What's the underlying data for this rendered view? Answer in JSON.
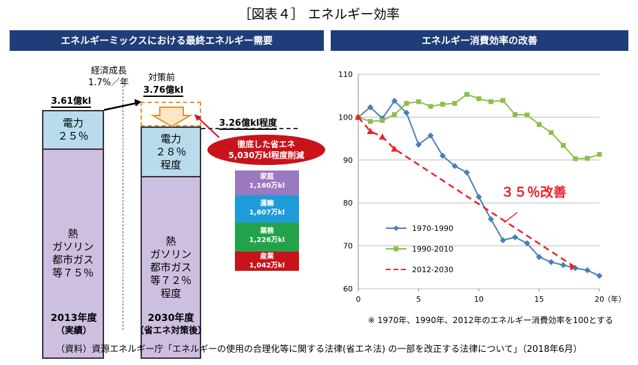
{
  "title": "［図表４］ エネルギー効率",
  "left_panel": {
    "header": "エネルギーミックスにおける最終エネルギー需要",
    "growth_label": "経済成長",
    "growth_rate": "1.7%／年",
    "before_label": "対策前",
    "before_value": "3.76億kl",
    "bar2013_total": "3.61億kl",
    "bar2013_elec": "電力\n２５％",
    "bar2013_heat": "熱\nガソリン\n都市ガス\n等７５％",
    "bar2013_label": "2013年度",
    "bar2013_sub": "（実績）",
    "after_value": "3.26億kl程度",
    "bar2030_elec": "電力\n２８％\n程度",
    "bar2030_heat": "熱\nガソリン\n都市ガス\n等７２％\n程度",
    "bar2030_label": "2030年度",
    "bar2030_sub": "（省エネ対策後）",
    "callout": "徹底した省エネ\n5,030万kl程度削減",
    "breakdown": [
      {
        "name": "家庭",
        "value": "1,160万kl",
        "color": "#9a79c0"
      },
      {
        "name": "運輸",
        "value": "1,607万kl",
        "color": "#1f9cd8"
      },
      {
        "name": "業務",
        "value": "1,226万kl",
        "color": "#22a34a"
      },
      {
        "name": "産業",
        "value": "1,042万kl",
        "color": "#c8131b"
      }
    ]
  },
  "right_panel": {
    "header": "エネルギー消費効率の改善",
    "improve_label": "３５％改善",
    "note": "※ 1970年、1990年、2012年のエネルギー消費効率を100とする",
    "x_unit": "（年）"
  },
  "footer": "（資料）資源エネルギー庁「エネルギーの使用の合理化等に関する法律(省エネ法) の一部を改正する法律について」（2018年6月）",
  "chart_data": {
    "type": "line",
    "xlabel": "（年）",
    "ylabel": "",
    "xlim": [
      0,
      20
    ],
    "ylim": [
      60,
      110
    ],
    "xticks": [
      0,
      5,
      10,
      15,
      20
    ],
    "yticks": [
      60,
      70,
      80,
      90,
      100,
      110
    ],
    "grid": true,
    "legend": "center-left",
    "series": [
      {
        "name": "1970-1990",
        "color": "#4a7ebb",
        "style": "solid",
        "marker": "diamond",
        "x": [
          0,
          1,
          2,
          3,
          4,
          5,
          6,
          7,
          8,
          9,
          10,
          11,
          12,
          13,
          14,
          15,
          16,
          17,
          18,
          19,
          20
        ],
        "values": [
          100,
          102.3,
          99.7,
          103.8,
          101,
          93.6,
          95.7,
          91,
          88.6,
          87.1,
          81.4,
          76.2,
          71.3,
          72,
          70.6,
          67.4,
          66.2,
          65.5,
          64.8,
          64.3,
          63
        ]
      },
      {
        "name": "1990-2010",
        "color": "#8cbf4a",
        "style": "solid",
        "marker": "square",
        "x": [
          0,
          1,
          2,
          3,
          4,
          5,
          6,
          7,
          8,
          9,
          10,
          11,
          12,
          13,
          14,
          15,
          16,
          17,
          18,
          19,
          20
        ],
        "values": [
          100,
          99,
          99.2,
          100.6,
          103.2,
          103.6,
          102.5,
          103,
          103.2,
          105.3,
          104.3,
          103.6,
          103.9,
          100.6,
          100.5,
          98.3,
          96.4,
          93.4,
          90.3,
          90.4,
          91.3
        ]
      },
      {
        "name": "2012-2030",
        "color": "#e8242b",
        "style": "dashed",
        "marker": "triangle",
        "x": [
          0,
          1,
          2,
          3,
          18
        ],
        "values": [
          100,
          96.7,
          95.4,
          92.6,
          65
        ]
      }
    ]
  }
}
